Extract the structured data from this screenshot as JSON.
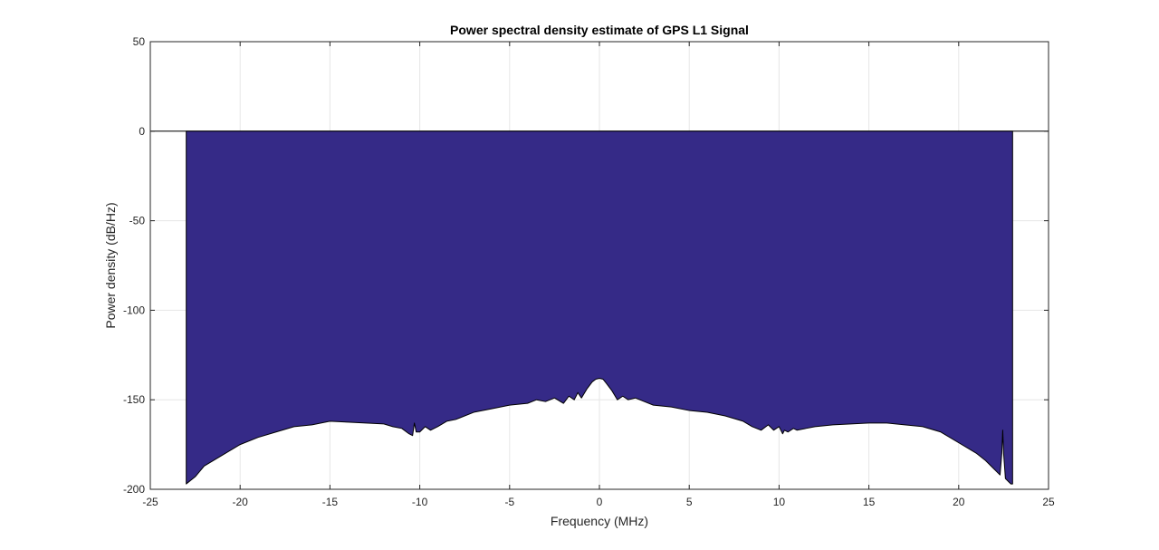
{
  "chart_data": {
    "type": "area",
    "title": "Power spectral density estimate of GPS L1 Signal",
    "xlabel": "Frequency (MHz)",
    "ylabel": "Power density (dB/Hz)",
    "xlim": [
      -25,
      25
    ],
    "ylim": [
      -200,
      50
    ],
    "xticks": [
      -25,
      -20,
      -15,
      -10,
      -5,
      0,
      5,
      10,
      15,
      20,
      25
    ],
    "yticks": [
      -200,
      -150,
      -100,
      -50,
      0,
      50
    ],
    "grid": true,
    "legend": "none",
    "baseline": 0,
    "fill_color": "#352a87",
    "edge_color": "#000000",
    "grid_color": "#e6e6e6",
    "series": [
      {
        "x": [
          -23,
          -22.5,
          -22,
          -21,
          -20,
          -19,
          -18,
          -17,
          -16,
          -15,
          -14,
          -13,
          -12,
          -11.5,
          -11,
          -10.6,
          -10.4,
          -10.3,
          -10.2,
          -10,
          -9.7,
          -9.4,
          -9,
          -8.5,
          -8,
          -7,
          -6,
          -5,
          -4,
          -3.5,
          -3,
          -2.5,
          -2,
          -1.7,
          -1.4,
          -1.2,
          -1,
          -0.7,
          -0.4,
          -0.2,
          0,
          0.2,
          0.4,
          0.7,
          1,
          1.3,
          1.6,
          2,
          2.5,
          3,
          4,
          5,
          6,
          7,
          8,
          8.5,
          9,
          9.4,
          9.7,
          10,
          10.2,
          10.3,
          10.5,
          10.8,
          11,
          11.5,
          12,
          13,
          14,
          15,
          16,
          17,
          18,
          19,
          20,
          21,
          21.5,
          22,
          22.3,
          22.4,
          22.45,
          22.5,
          22.6,
          22.8,
          22.9,
          23
        ],
        "y": [
          -197,
          -193,
          -187,
          -181,
          -175,
          -171,
          -168,
          -165,
          -164,
          -162,
          -162.5,
          -163,
          -163.5,
          -165,
          -166,
          -169,
          -170,
          -163,
          -168,
          -168,
          -165,
          -167,
          -165,
          -162,
          -161,
          -157,
          -155,
          -153,
          -152,
          -150,
          -151,
          -149,
          -152,
          -148,
          -150,
          -146,
          -149,
          -144,
          -140,
          -138.5,
          -138,
          -138.5,
          -141,
          -145,
          -150,
          -148,
          -150,
          -149,
          -151,
          -153,
          -154,
          -156,
          -157,
          -159,
          -162,
          -165,
          -167,
          -164,
          -167,
          -165,
          -169,
          -167,
          -168,
          -166,
          -167,
          -166,
          -165,
          -164,
          -163.5,
          -163,
          -163,
          -164,
          -165,
          -168,
          -174,
          -180,
          -184,
          -189,
          -192,
          -180,
          -167,
          -180,
          -194,
          -196,
          -197,
          -197
        ]
      }
    ]
  }
}
